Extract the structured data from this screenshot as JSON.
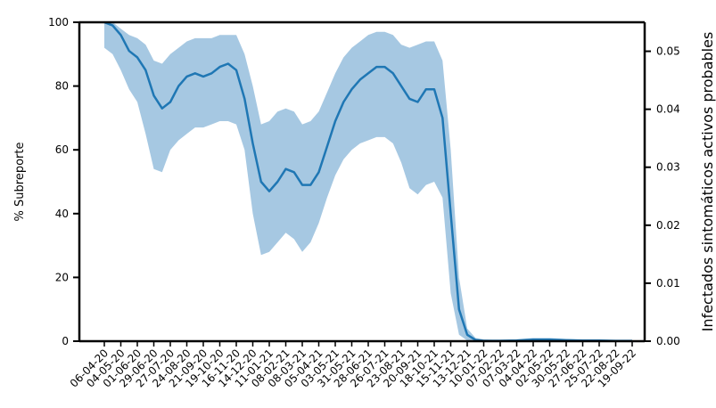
{
  "chart_data": {
    "type": "line",
    "title": "",
    "ylabel_left": "% Subreporte",
    "ylabel_right": "Infectados sintomáticos activos probables",
    "ylim_left": [
      0,
      100
    ],
    "ylim_right": [
      0,
      0.055
    ],
    "yticks_left": [
      0,
      20,
      40,
      60,
      80,
      100
    ],
    "yticks_right": [
      "0.00",
      "0.01",
      "0.02",
      "0.03",
      "0.04",
      "0.05"
    ],
    "x_tick_labels": [
      "06-04-20",
      "04-05-20",
      "01-06-20",
      "29-06-20",
      "27-07-20",
      "24-08-20",
      "21-09-20",
      "19-10-20",
      "16-11-20",
      "14-12-20",
      "11-01-21",
      "08-02-21",
      "08-03-21",
      "05-04-21",
      "03-05-21",
      "31-05-21",
      "28-06-21",
      "26-07-21",
      "23-08-21",
      "20-09-21",
      "18-10-21",
      "15-11-21",
      "13-12-21",
      "10-01-22",
      "07-02-22",
      "07-03-22",
      "04-04-22",
      "02-05-22",
      "30-05-22",
      "27-06-22",
      "25-07-22",
      "22-08-22",
      "19-09-22"
    ],
    "series": [
      {
        "kind": "mean",
        "color": "#1f77b4",
        "x_index": [
          0,
          0.5,
          1,
          1.5,
          2,
          2.5,
          3,
          3.5,
          4,
          4.5,
          5,
          5.5,
          6,
          6.5,
          7,
          7.5,
          8,
          8.5,
          9,
          9.5,
          10,
          10.5,
          11,
          11.5,
          12,
          12.5,
          13,
          13.5,
          14,
          14.5,
          15,
          15.5,
          16,
          16.5,
          17,
          17.5,
          18,
          18.5,
          19,
          19.5,
          20,
          20.5,
          21,
          21.5,
          22,
          22.5,
          23,
          23.5,
          24,
          25,
          26,
          27,
          28,
          29,
          30,
          31,
          32
        ],
        "values": [
          100,
          99,
          96,
          91,
          89,
          85,
          77,
          73,
          75,
          80,
          83,
          84,
          83,
          84,
          86,
          87,
          85,
          76,
          62,
          50,
          47,
          50,
          54,
          53,
          49,
          49,
          53,
          61,
          69,
          75,
          79,
          82,
          84,
          86,
          86,
          84,
          80,
          76,
          75,
          79,
          79,
          70,
          40,
          10,
          2,
          0.4,
          0.1,
          0.1,
          0.1,
          0.2,
          0.5,
          0.5,
          0.3,
          0.2,
          0.2,
          0.1,
          0.1
        ]
      },
      {
        "kind": "band-upper",
        "color": "#a6c8e2",
        "x_index": [
          0,
          0.5,
          1,
          1.5,
          2,
          2.5,
          3,
          3.5,
          4,
          4.5,
          5,
          5.5,
          6,
          6.5,
          7,
          7.5,
          8,
          8.5,
          9,
          9.5,
          10,
          10.5,
          11,
          11.5,
          12,
          12.5,
          13,
          13.5,
          14,
          14.5,
          15,
          15.5,
          16,
          16.5,
          17,
          17.5,
          18,
          18.5,
          19,
          19.5,
          20,
          20.5,
          21,
          21.5,
          22,
          22.5,
          23,
          23.5,
          24,
          25,
          26,
          27,
          28,
          29,
          30,
          31,
          32
        ],
        "values": [
          100,
          100,
          98,
          96,
          95,
          93,
          88,
          87,
          90,
          92,
          94,
          95,
          95,
          95,
          96,
          96,
          96,
          90,
          80,
          68,
          69,
          72,
          73,
          72,
          68,
          69,
          72,
          78,
          84,
          89,
          92,
          94,
          96,
          97,
          97,
          96,
          93,
          92,
          93,
          94,
          94,
          88,
          60,
          20,
          4,
          1,
          0.6,
          0.5,
          0.5,
          0.6,
          1,
          1,
          0.7,
          0.5,
          0.5,
          0.4,
          0.3
        ]
      },
      {
        "kind": "band-lower",
        "color": "#a6c8e2",
        "x_index": [
          0,
          0.5,
          1,
          1.5,
          2,
          2.5,
          3,
          3.5,
          4,
          4.5,
          5,
          5.5,
          6,
          6.5,
          7,
          7.5,
          8,
          8.5,
          9,
          9.5,
          10,
          10.5,
          11,
          11.5,
          12,
          12.5,
          13,
          13.5,
          14,
          14.5,
          15,
          15.5,
          16,
          16.5,
          17,
          17.5,
          18,
          18.5,
          19,
          19.5,
          20,
          20.5,
          21,
          21.5,
          22,
          22.5,
          23,
          23.5,
          24,
          25,
          26,
          27,
          28,
          29,
          30,
          31,
          32
        ],
        "values": [
          92,
          90,
          85,
          79,
          75,
          65,
          54,
          53,
          60,
          63,
          65,
          67,
          67,
          68,
          69,
          69,
          68,
          60,
          40,
          27,
          28,
          31,
          34,
          32,
          28,
          31,
          37,
          45,
          52,
          57,
          60,
          62,
          63,
          64,
          64,
          62,
          56,
          48,
          46,
          49,
          50,
          45,
          15,
          2,
          0.2,
          0,
          0,
          0,
          0,
          0,
          0,
          0,
          0,
          0,
          0,
          0,
          0
        ]
      }
    ]
  }
}
